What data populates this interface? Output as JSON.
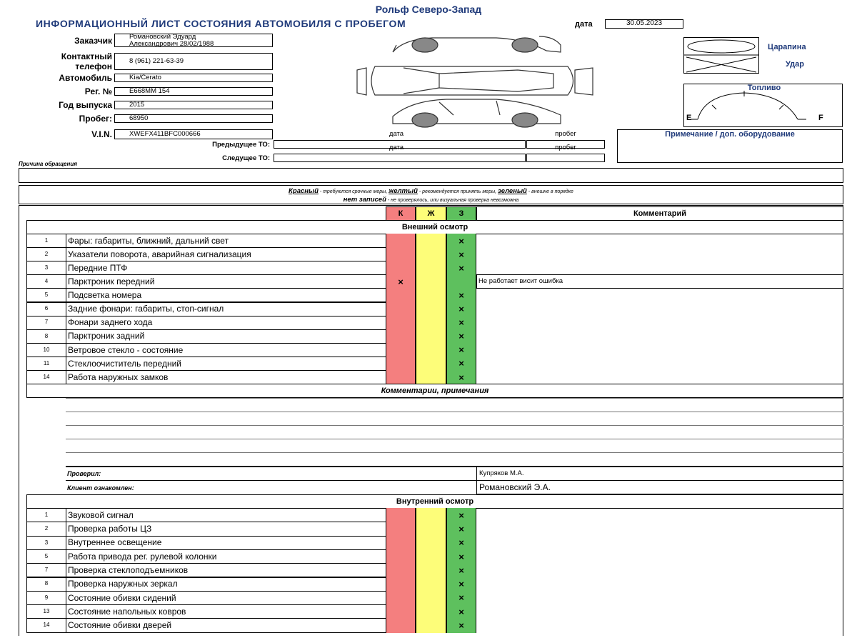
{
  "header": {
    "company": "Рольф Северо-Запад",
    "title": "ИНФОРМАЦИОННЫЙ ЛИСТ СОСТОЯНИЯ АВТОМОБИЛЯ С ПРОБЕГОМ",
    "date_label": "дата",
    "date": "30.05.2023"
  },
  "fields": [
    {
      "label": "Заказчик",
      "value": "Романовский Эдуард\nАлександрович 28/02/1988"
    },
    {
      "label": "Контактный\nтелефон",
      "value": "8 (961) 221-63-39"
    },
    {
      "label": "Автомобиль",
      "value": "Kia/Cerato"
    },
    {
      "label": "Рег. №",
      "value": "Е668ММ 154"
    },
    {
      "label": "Год выпуска",
      "value": "2015"
    },
    {
      "label": "Пробег:",
      "value": "68950"
    },
    {
      "label": "V.I.N.",
      "value": "XWEFX411BFC000666"
    }
  ],
  "damage_legend": {
    "scratch": "Царапина",
    "hit": "Удар",
    "fuel": "Топливо",
    "empty": "E",
    "full": "F",
    "note": "Примечание / доп. оборудование"
  },
  "service": {
    "previous": {
      "label": "Предыдущее ТО:",
      "date_label": "дата",
      "mileage_label": "пробег"
    },
    "next": {
      "label": "Следущее ТО:",
      "date_label": "дата",
      "mileage_label": "пробег"
    }
  },
  "reason_label": "Причина обращения",
  "color_legend": {
    "red": "Красный",
    "red_text": " - требуются срочные меры, ",
    "yellow": "желтый",
    "yellow_text": " - рекомендуется принять меры, ",
    "green": "зеленый",
    "green_text": " - внешне в порядке",
    "none": "нет записей",
    "none_text": " - не проверялось, или визуальная проверка невозможна"
  },
  "table": {
    "columns": [
      "К",
      "Ж",
      "З",
      "Комментарий"
    ],
    "external": {
      "title": "Внешний осмотр",
      "rows": [
        {
          "number": "1",
          "item": "Фары: габариты, ближний, дальний свет",
          "status": "green",
          "mark": "×"
        },
        {
          "number": "2",
          "item": "Указатели поворота, аварийная сигнализация",
          "status": "green",
          "mark": "×"
        },
        {
          "number": "3",
          "item": "Передние ПТФ",
          "status": "green",
          "mark": "×"
        },
        {
          "number": "4",
          "item": "Парктроник передний",
          "status": "red",
          "mark": "×",
          "comment": "Не работает висит ошибка"
        },
        {
          "number": "5",
          "item": "Подсветка номера",
          "status": "green",
          "mark": "×"
        },
        {
          "number": "6",
          "item": "Задние фонари: габариты, стоп-сигнал",
          "status": "green",
          "mark": "×"
        },
        {
          "number": "7",
          "item": "Фонари заднего хода",
          "status": "green",
          "mark": "×"
        },
        {
          "number": "8",
          "item": "Парктроник задний",
          "status": "green",
          "mark": "×"
        },
        {
          "number": "10",
          "item": "Ветровое стекло - состояние",
          "status": "green",
          "mark": "×"
        },
        {
          "number": "11",
          "item": "Стеклоочиститель передний",
          "status": "green",
          "mark": "×"
        },
        {
          "number": "14",
          "item": "Работа наружных замков",
          "status": "green",
          "mark": "×"
        }
      ]
    },
    "comments": {
      "title": "Комментарии, примечания",
      "checked_label": "Проверил:",
      "checked_by": "Купряков М.А.",
      "client_label": "Клиент ознакомлен:",
      "client": "Романовский Э.А."
    },
    "internal": {
      "title": "Внутренний осмотр",
      "rows": [
        {
          "number": "1",
          "item": "Звуковой сигнал",
          "status": "green",
          "mark": "×"
        },
        {
          "number": "2",
          "item": "Проверка работы ЦЗ",
          "status": "green",
          "mark": "×"
        },
        {
          "number": "3",
          "item": "Внутреннее освещение",
          "status": "green",
          "mark": "×"
        },
        {
          "number": "5",
          "item": "Работа привода рег. рулевой колонки",
          "status": "green",
          "mark": "×"
        },
        {
          "number": "7",
          "item": "Проверка стеклоподъемников",
          "status": "green",
          "mark": "×"
        },
        {
          "number": "8",
          "item": "Проверка наружных зеркал",
          "status": "green",
          "mark": "×"
        },
        {
          "number": "9",
          "item": "Состояние обивки сидений",
          "status": "green",
          "mark": "×"
        },
        {
          "number": "13",
          "item": "Состояние напольных ковров",
          "status": "green",
          "mark": "×"
        },
        {
          "number": "14",
          "item": "Состояние обивки дверей",
          "status": "green",
          "mark": "×"
        }
      ]
    }
  }
}
